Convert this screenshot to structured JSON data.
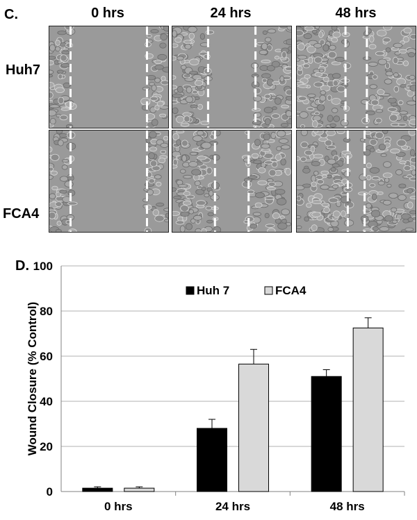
{
  "panel_c": {
    "label": "C.",
    "columns": [
      "0 hrs",
      "24 hrs",
      "48 hrs"
    ],
    "rows": [
      "Huh7",
      "FCA4"
    ],
    "gap_fraction_remaining": [
      [
        1.0,
        0.62,
        0.28
      ],
      [
        1.0,
        0.44,
        0.22
      ]
    ]
  },
  "panel_d": {
    "label": "D."
  },
  "colors": {
    "huh7": "#000000",
    "fca4": "#d9d9d9",
    "gridline": "#b0b0b0",
    "cell_bg": "#9a9a9a"
  },
  "chart_data": {
    "type": "bar",
    "categories": [
      "0 hrs",
      "24 hrs",
      "48 hrs"
    ],
    "series": [
      {
        "name": "Huh 7",
        "values": [
          1.5,
          28,
          51
        ],
        "errors": [
          0.6,
          4,
          3
        ]
      },
      {
        "name": "FCA4",
        "values": [
          1.5,
          56.5,
          72.5
        ],
        "errors": [
          0.6,
          6.5,
          4.5
        ]
      }
    ],
    "title": "",
    "xlabel": "",
    "ylabel": "Wound Closure (% Control)",
    "ylim": [
      0,
      100
    ],
    "yticks": [
      0,
      20,
      40,
      60,
      80,
      100
    ],
    "grid": true,
    "legend_position": "top-center"
  }
}
